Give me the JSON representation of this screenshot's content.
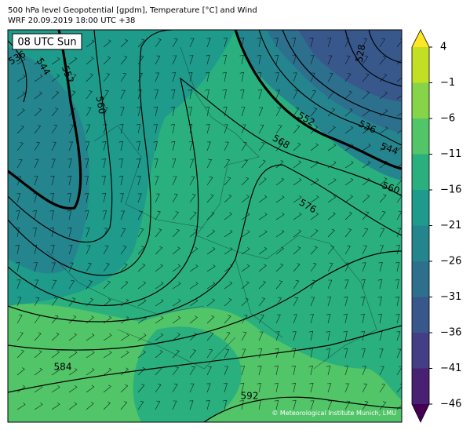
{
  "header": {
    "line1": "500 hPa level Geopotential [gpdm], Temperature [°C] and Wind",
    "line2": "WRF 20.09.2019 18:00 UTC +38"
  },
  "map": {
    "time_box": "08 UTC Sun",
    "contour_labels": [
      "536",
      "544",
      "552",
      "560",
      "568",
      "576",
      "552",
      "536",
      "544",
      "560",
      "528",
      "584",
      "592"
    ],
    "copyright": "© Meteorological Institute Munich, LMU"
  },
  "colorbar": {
    "colors": [
      "#440154",
      "#482173",
      "#433e85",
      "#38588c",
      "#2d708e",
      "#25858e",
      "#1e9b8a",
      "#2ab07f",
      "#52c569",
      "#86d549",
      "#c2df23",
      "#fde725"
    ],
    "ticks": [
      {
        "value": -46,
        "label": "−46"
      },
      {
        "value": -41,
        "label": "−41"
      },
      {
        "value": -36,
        "label": "−36"
      },
      {
        "value": -31,
        "label": "−31"
      },
      {
        "value": -26,
        "label": "−26"
      },
      {
        "value": -21,
        "label": "−21"
      },
      {
        "value": -16,
        "label": "−16"
      },
      {
        "value": -11,
        "label": "−11"
      },
      {
        "value": -6,
        "label": "−6"
      },
      {
        "value": -1,
        "label": "−1"
      },
      4
    ]
  }
}
